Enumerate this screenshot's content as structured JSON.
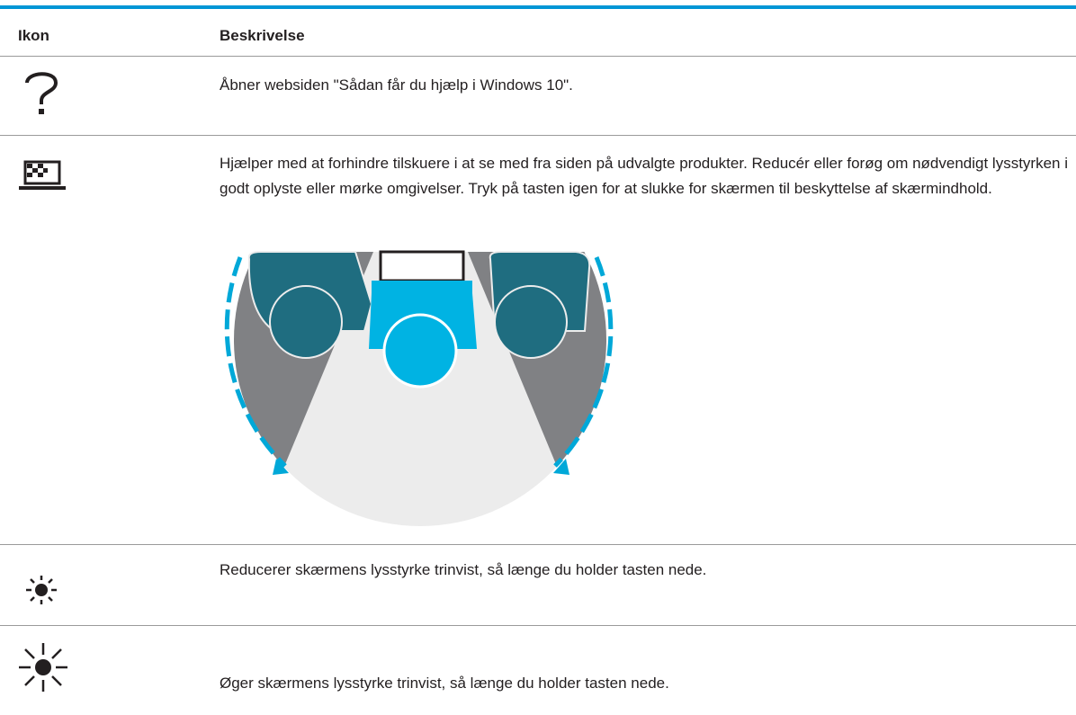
{
  "table": {
    "header": [
      "Ikon",
      "Beskrivelse"
    ],
    "rows": [
      "Åbner websiden \"Sådan får du hjælp i Windows 10\".",
      "Hjælper med at forhindre tilskuere i at se med fra siden på udvalgte produkter. Reducér eller forøg om nødvendigt lysstyrken i godt oplyste eller mørke omgivelser. Tryk på tasten igen for at slukke for skærmen til beskyttelse af skærmindhold.",
      "Reducerer skærmens lysstyrke trinvist, så længe du holder tasten nede.",
      "Øger skærmens lysstyrke trinvist, så længe du holder tasten nede."
    ]
  }
}
